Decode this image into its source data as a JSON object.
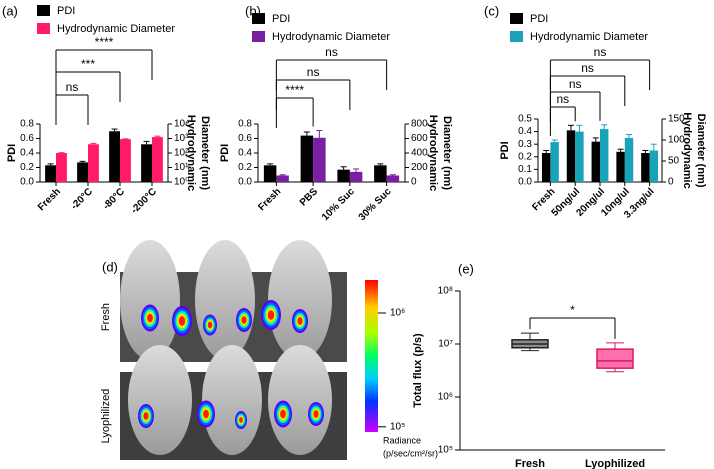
{
  "chart_data": [
    {
      "type": "bar",
      "panel": "(a)",
      "ylabel": "PDI",
      "y2label": [
        "Hydrodynamic",
        "Diameter (nm)"
      ],
      "categories": [
        "Fresh",
        "-20°C",
        "-80°C",
        "-200°C"
      ],
      "series": [
        {
          "name": "PDI",
          "color": "#000000",
          "values": [
            0.23,
            0.27,
            0.7,
            0.52
          ],
          "errors": [
            0.02,
            0.015,
            0.03,
            0.04
          ]
        },
        {
          "name": "Hydrodynamic Diameter",
          "color": "#ff1a6b",
          "axis": "y2",
          "values": [
            100,
            400,
            900,
            1250
          ],
          "errors": [
            5,
            60,
            50,
            200
          ]
        }
      ],
      "ylim": [
        0,
        0.8
      ],
      "yticks": [
        {
          "value": 0,
          "label": "0.0"
        },
        0.2,
        0.4,
        0.6,
        0.8
      ],
      "y2log": true,
      "y2lim": [
        1,
        10000
      ],
      "y2ticks": [
        {
          "value": 1,
          "label": "10⁰"
        },
        {
          "value": 10,
          "label": "10¹"
        },
        {
          "value": 100,
          "label": "10²"
        },
        {
          "value": 1000,
          "label": "10³"
        },
        {
          "value": 10000,
          "label": "10⁴"
        }
      ],
      "annotations": [
        "ns",
        "***",
        "****"
      ]
    },
    {
      "type": "bar",
      "panel": "(b)",
      "ylabel": "PDI",
      "y2label": [
        "Hydrodynamic",
        "Diameter (nm)"
      ],
      "categories": [
        "Fresh",
        "PBS",
        "10% Suc",
        "30% Suc"
      ],
      "series": [
        {
          "name": "PDI",
          "color": "#000000",
          "values": [
            0.23,
            0.64,
            0.17,
            0.23
          ],
          "errors": [
            0.02,
            0.05,
            0.04,
            0.02
          ]
        },
        {
          "name": "Hydrodynamic Diameter",
          "color": "#7b1fa2",
          "axis": "y2",
          "values": [
            90,
            610,
            140,
            90
          ],
          "errors": [
            10,
            100,
            40,
            10
          ]
        }
      ],
      "ylim": [
        0,
        0.8
      ],
      "yticks": [
        {
          "value": 0,
          "label": "0.0"
        },
        0.2,
        0.4,
        0.6,
        0.8
      ],
      "y2lim": [
        0,
        800
      ],
      "y2ticks": [
        0,
        200,
        400,
        600,
        800
      ],
      "annotations": [
        "****",
        "ns",
        "ns"
      ]
    },
    {
      "type": "bar",
      "panel": "(c)",
      "ylabel": "PDI",
      "y2label": [
        "Hydrodynamic",
        "Diameter (nm)"
      ],
      "categories": [
        "Fresh",
        "50ng/ul",
        "20ng/ul",
        "10ng/ul",
        "3.3ng/ul"
      ],
      "series": [
        {
          "name": "PDI",
          "color": "#000000",
          "values": [
            0.23,
            0.41,
            0.32,
            0.24,
            0.23
          ],
          "errors": [
            0.02,
            0.04,
            0.03,
            0.02,
            0.02
          ]
        },
        {
          "name": "Hydrodynamic Diameter",
          "color": "#1aa3b8",
          "axis": "y2",
          "values": [
            95,
            120,
            126,
            105,
            75
          ],
          "errors": [
            5,
            15,
            10,
            8,
            15
          ]
        }
      ],
      "ylim": [
        0,
        0.5
      ],
      "yticks": [
        {
          "value": 0,
          "label": "0.0"
        },
        0.1,
        0.2,
        0.3,
        0.4,
        0.5
      ],
      "y2lim": [
        0,
        150
      ],
      "y2ticks": [
        0,
        50,
        100,
        150
      ],
      "annotations": [
        "ns",
        "ns",
        "ns",
        "ns"
      ]
    },
    {
      "type": "image",
      "panel": "(d)",
      "rows": [
        "Fresh",
        "Lyophilized"
      ],
      "colorbar": {
        "label": [
          "Radiance",
          "(p/sec/cm²/sr)"
        ],
        "log": true,
        "clim": [
          90000,
          1950000
        ],
        "ticks": [
          {
            "value": 1000000,
            "label": "10⁶"
          },
          {
            "value": 100000,
            "label": "10⁵"
          }
        ]
      }
    },
    {
      "type": "box",
      "panel": "(e)",
      "ylabel": "Total flux (p/s)",
      "categories": [
        "Fresh",
        "Lyophilized"
      ],
      "stats": [
        {
          "min": 7500000,
          "q1": 8500000,
          "median": 10000000,
          "q3": 12000000,
          "max": 16000000
        },
        {
          "min": 3000000,
          "q1": 3500000,
          "median": 4800000,
          "q3": 8000000,
          "max": 10500000
        }
      ],
      "colors": [
        "#8c8c8c",
        "#ff6fae"
      ],
      "edgecolors": [
        "#222222",
        "#d81b60"
      ],
      "ylog": true,
      "ylim": [
        100000,
        100000000
      ],
      "yticks": [
        {
          "value": 100000,
          "label": "10⁵"
        },
        {
          "value": 1000000,
          "label": "10⁶"
        },
        {
          "value": 10000000,
          "label": "10⁷"
        },
        {
          "value": 100000000,
          "label": "10⁸"
        }
      ],
      "annotations": [
        "*"
      ]
    }
  ]
}
